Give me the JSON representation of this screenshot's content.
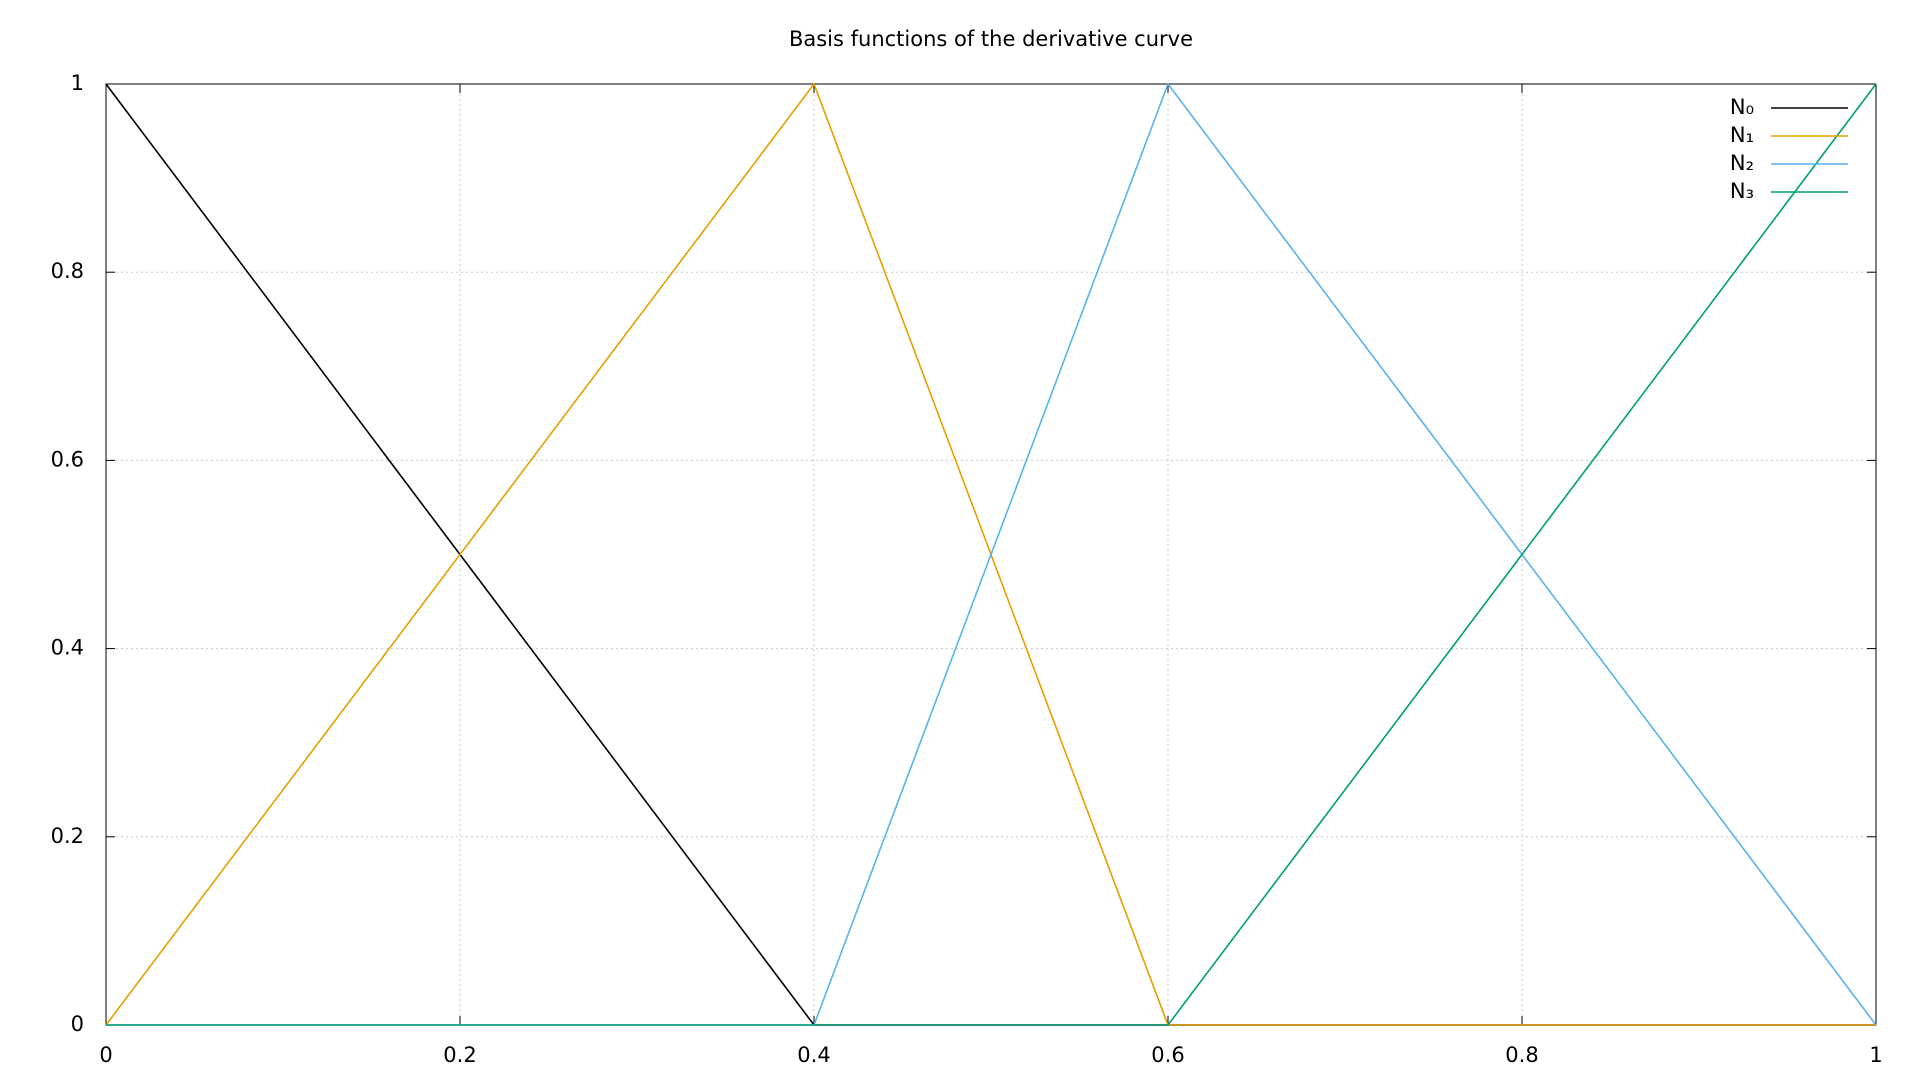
{
  "chart_data": {
    "type": "line",
    "title": "Basis functions of the derivative curve",
    "x": [
      0,
      0.4,
      0.6,
      1
    ],
    "series": [
      {
        "name": "N₀",
        "color": "#000000",
        "values": [
          1,
          0,
          0,
          0
        ]
      },
      {
        "name": "N₁",
        "color": "#e69f00",
        "values": [
          0,
          1,
          0,
          0
        ]
      },
      {
        "name": "N₂",
        "color": "#56b4e9",
        "values": [
          0,
          0,
          1,
          0
        ]
      },
      {
        "name": "N₃",
        "color": "#009e73",
        "values": [
          0,
          0,
          0,
          1
        ]
      }
    ],
    "xlim": [
      0,
      1
    ],
    "ylim": [
      0,
      1
    ],
    "xticks": [
      0,
      0.2,
      0.4,
      0.6,
      0.8,
      1
    ],
    "yticks": [
      0,
      0.2,
      0.4,
      0.6,
      0.8,
      1
    ],
    "grid": true,
    "legend": "top-right"
  }
}
